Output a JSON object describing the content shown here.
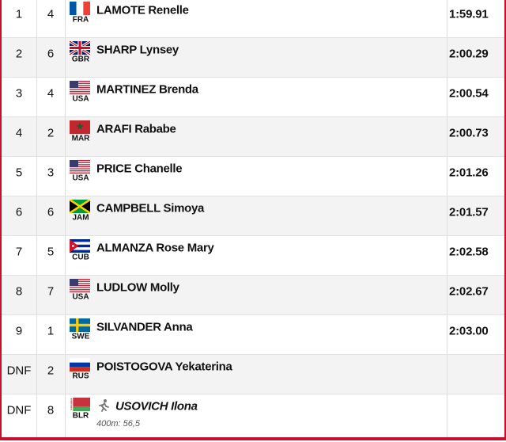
{
  "rows": [
    {
      "rank": "1",
      "lane": "4",
      "country": "FRA",
      "name": "LAMOTE Renelle",
      "time": "1:59.91"
    },
    {
      "rank": "2",
      "lane": "6",
      "country": "GBR",
      "name": "SHARP Lynsey",
      "time": "2:00.29"
    },
    {
      "rank": "3",
      "lane": "4",
      "country": "USA",
      "name": "MARTINEZ Brenda",
      "time": "2:00.54"
    },
    {
      "rank": "4",
      "lane": "2",
      "country": "MAR",
      "name": "ARAFI Rababe",
      "time": "2:00.73"
    },
    {
      "rank": "5",
      "lane": "3",
      "country": "USA",
      "name": "PRICE Chanelle",
      "time": "2:01.26"
    },
    {
      "rank": "6",
      "lane": "6",
      "country": "JAM",
      "name": "CAMPBELL Simoya",
      "time": "2:01.57"
    },
    {
      "rank": "7",
      "lane": "5",
      "country": "CUB",
      "name": "ALMANZA Rose Mary",
      "time": "2:02.58"
    },
    {
      "rank": "8",
      "lane": "7",
      "country": "USA",
      "name": "LUDLOW Molly",
      "time": "2:02.67"
    },
    {
      "rank": "9",
      "lane": "1",
      "country": "SWE",
      "name": "SILVANDER Anna",
      "time": "2:03.00"
    },
    {
      "rank": "DNF",
      "lane": "2",
      "country": "RUS",
      "name": "POISTOGOVA Yekaterina"
    },
    {
      "rank": "DNF",
      "lane": "8",
      "country": "BLR",
      "name": "USOVICH Ilona",
      "note": "400m: 56,5"
    }
  ]
}
